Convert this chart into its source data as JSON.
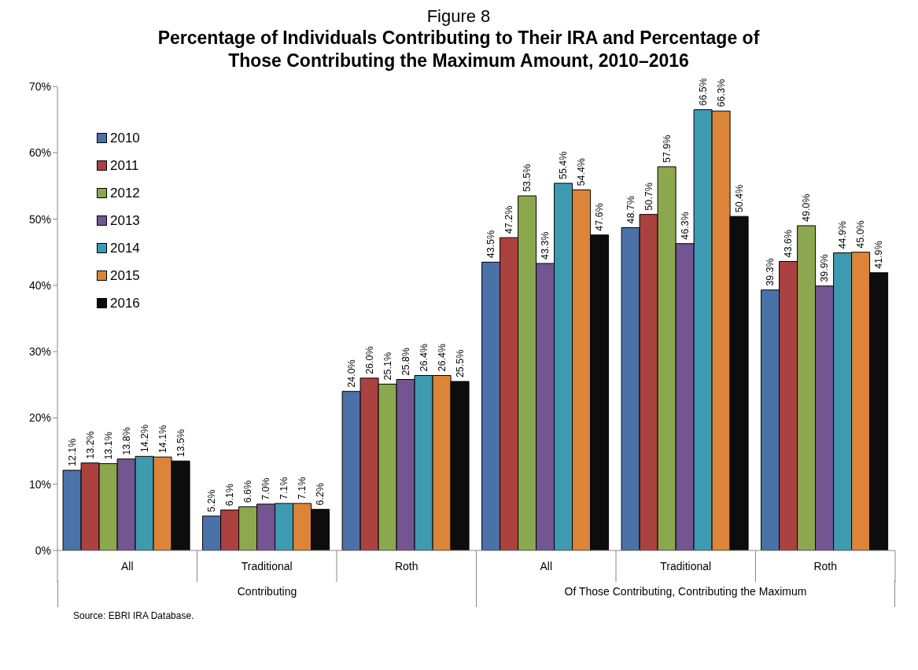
{
  "chart_data": {
    "type": "bar",
    "title": "Figure 8",
    "subtitle": "Percentage of Individuals Contributing to Their IRA and Percentage of Those Contributing the Maximum Amount, 2010–2016",
    "categories": [
      "All",
      "Traditional",
      "Roth",
      "All",
      "Traditional",
      "Roth"
    ],
    "series": [
      {
        "name": "2010",
        "color": "#4a72a8",
        "values": [
          12.1,
          5.2,
          24.0,
          43.5,
          48.7,
          39.3
        ],
        "value_labels": [
          "12.1%",
          "5.2%",
          "24.0%",
          "43.5%",
          "48.7%",
          "39.3%"
        ]
      },
      {
        "name": "2011",
        "color": "#ab4240",
        "values": [
          13.2,
          6.1,
          26.0,
          47.2,
          50.7,
          43.6
        ],
        "value_labels": [
          "13.2%",
          "6.1%",
          "26.0%",
          "47.2%",
          "50.7%",
          "43.6%"
        ]
      },
      {
        "name": "2012",
        "color": "#8ca84e",
        "values": [
          13.1,
          6.6,
          25.1,
          53.5,
          57.9,
          49.0
        ],
        "value_labels": [
          "13.1%",
          "6.6%",
          "25.1%",
          "53.5%",
          "57.9%",
          "49.0%"
        ]
      },
      {
        "name": "2013",
        "color": "#735592",
        "values": [
          13.8,
          7.0,
          25.8,
          43.3,
          46.3,
          39.9
        ],
        "value_labels": [
          "13.8%",
          "7.0%",
          "25.8%",
          "43.3%",
          "46.3%",
          "39.9%"
        ]
      },
      {
        "name": "2014",
        "color": "#3e9ab0",
        "values": [
          14.2,
          7.1,
          26.4,
          55.4,
          66.5,
          44.9
        ],
        "value_labels": [
          "14.2%",
          "7.1%",
          "26.4%",
          "55.4%",
          "66.5%",
          "44.9%"
        ]
      },
      {
        "name": "2015",
        "color": "#dc8437",
        "values": [
          14.1,
          7.1,
          26.4,
          54.4,
          66.3,
          45.0
        ],
        "value_labels": [
          "14.1%",
          "7.1%",
          "26.4%",
          "54.4%",
          "66.3%",
          "45.0%"
        ]
      },
      {
        "name": "2016",
        "color": "#0d0d0d",
        "values": [
          13.5,
          6.2,
          25.5,
          47.6,
          50.4,
          41.9
        ],
        "value_labels": [
          "13.5%",
          "6.2%",
          "25.5%",
          "47.6%",
          "50.4%",
          "41.9%"
        ]
      }
    ],
    "ylim": [
      0,
      70
    ],
    "yticks": [
      {
        "value": 0,
        "label": "0%"
      },
      {
        "value": 10,
        "label": "10%"
      },
      {
        "value": 20,
        "label": "20%"
      },
      {
        "value": 30,
        "label": "30%"
      },
      {
        "value": 40,
        "label": "40%"
      },
      {
        "value": 50,
        "label": "50%"
      },
      {
        "value": 60,
        "label": "60%"
      },
      {
        "value": 70,
        "label": "70%"
      }
    ],
    "legend": "top left",
    "annotations": [
      "Contributing",
      "Of Those Contributing, Contributing the Maximum",
      "Source: EBRI IRA Database."
    ]
  }
}
